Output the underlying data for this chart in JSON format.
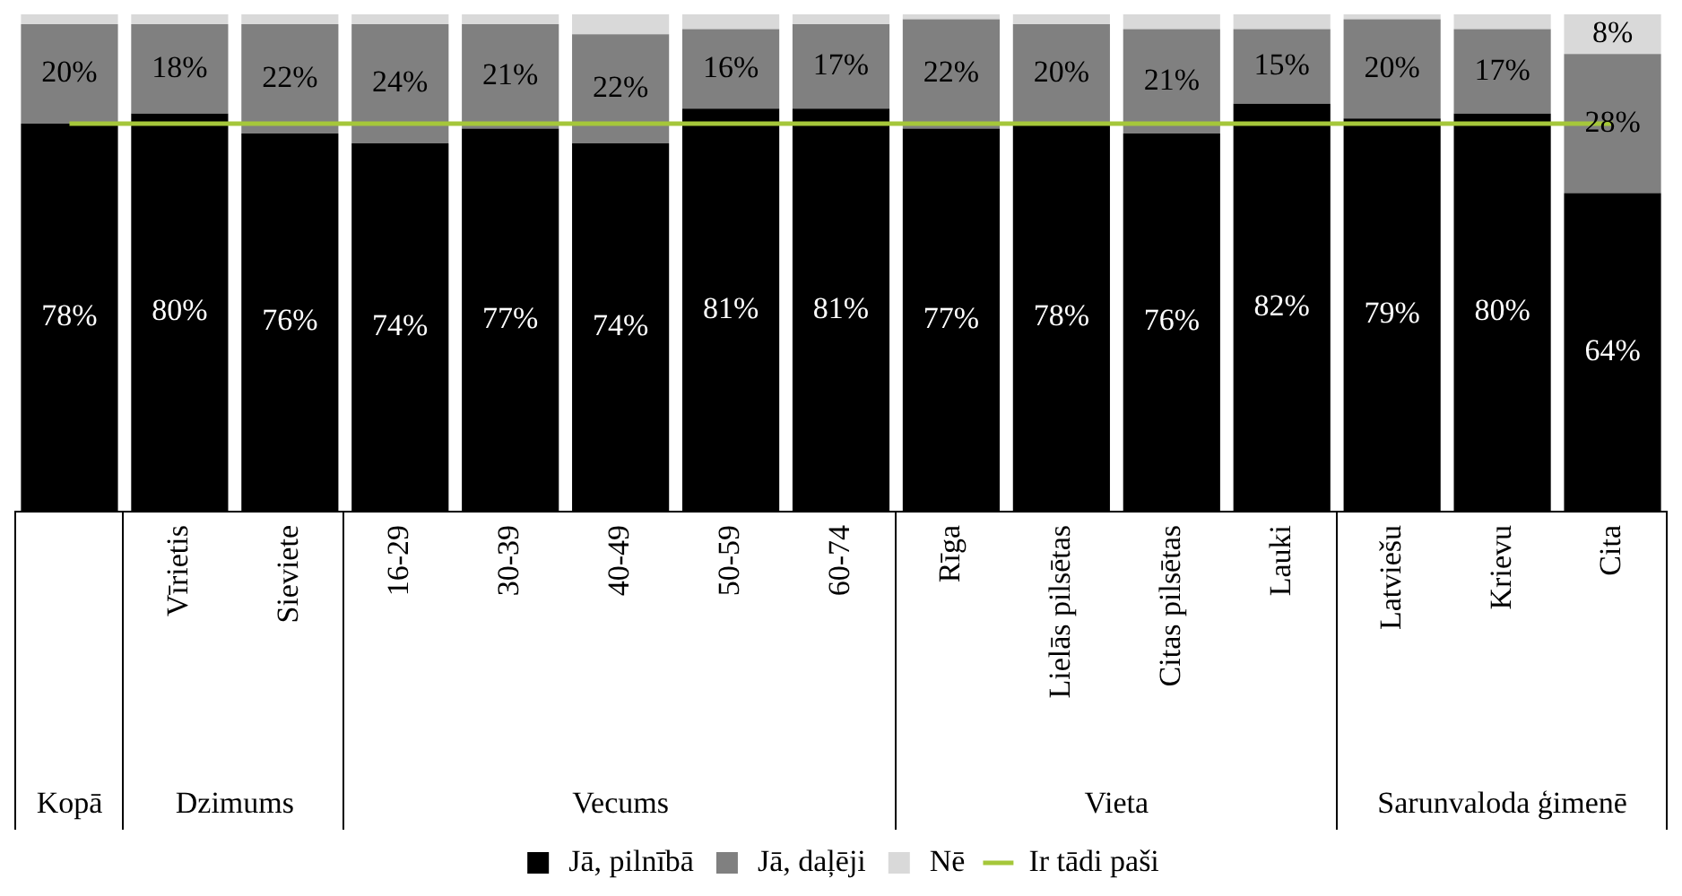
{
  "chart_data": {
    "type": "bar",
    "stacked": true,
    "categories": [
      null,
      "Vīrietis",
      "Sieviete",
      "16-29",
      "30-39",
      "40-49",
      "50-59",
      "60-74",
      "Rīga",
      "Lielās pilsētas",
      "Citas pilsētas",
      "Lauki",
      "Latviešu",
      "Krievu",
      "Cita"
    ],
    "series": [
      {
        "name": "Jā, pilnībā",
        "color": "#000000",
        "values": [
          78,
          80,
          76,
          74,
          77,
          74,
          81,
          81,
          77,
          78,
          76,
          82,
          79,
          80,
          64
        ],
        "value_labels": [
          "78%",
          "80%",
          "76%",
          "74%",
          "77%",
          "74%",
          "81%",
          "81%",
          "77%",
          "78%",
          "76%",
          "82%",
          "79%",
          "80%",
          "64%"
        ]
      },
      {
        "name": "Jā, daļēji",
        "color": "#808080",
        "values": [
          20,
          18,
          22,
          24,
          21,
          22,
          16,
          17,
          22,
          20,
          21,
          15,
          20,
          17,
          28
        ],
        "value_labels": [
          "20%",
          "18%",
          "22%",
          "24%",
          "21%",
          "22%",
          "16%",
          "17%",
          "22%",
          "20%",
          "21%",
          "15%",
          "20%",
          "17%",
          "28%"
        ]
      },
      {
        "name": "Nē",
        "color": "#d9d9d9",
        "values": [
          2,
          2,
          2,
          2,
          2,
          4,
          3,
          2,
          1,
          2,
          3,
          3,
          1,
          3,
          8
        ],
        "value_labels": [
          null,
          null,
          null,
          null,
          null,
          null,
          null,
          null,
          null,
          null,
          null,
          null,
          null,
          null,
          "8%"
        ]
      },
      {
        "name": "Ir tādi paši",
        "type": "line",
        "color": "#a5c73a",
        "values": [
          78,
          78,
          78,
          78,
          78,
          78,
          78,
          78,
          78,
          78,
          78,
          78,
          78,
          78,
          78
        ]
      }
    ],
    "ylim": [
      0,
      100
    ],
    "annotations": [
      "Kopā",
      "Dzimums",
      "Vecums",
      "Vieta",
      "Sarunvaloda ģimenē"
    ],
    "legend": "bottom",
    "grid": false
  }
}
